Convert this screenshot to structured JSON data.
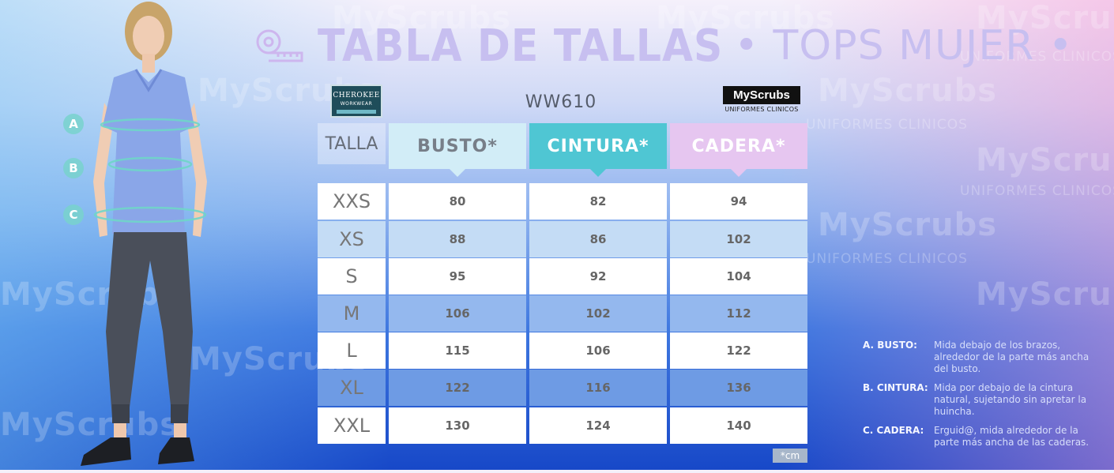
{
  "title": {
    "main": "TABLA DE TALLAS",
    "sub": "• TOPS MUJER •"
  },
  "brand_left": {
    "name": "CHEROKEE",
    "sub": "WORKWEAR"
  },
  "model_code": "WW610",
  "brand_right": {
    "name": "MyScrubs",
    "sub": "UNIFORMES CLINICOS"
  },
  "watermark": {
    "text": "MyScrubs",
    "sub": "UNIFORMES CLINICOS"
  },
  "table": {
    "headers": {
      "size": "TALLA",
      "bust": "BUSTO*",
      "waist": "CINTURA*",
      "hip": "CADERA*"
    },
    "rows": [
      {
        "size": "XXS",
        "bust": "80",
        "waist": "82",
        "hip": "94"
      },
      {
        "size": "XS",
        "bust": "88",
        "waist": "86",
        "hip": "102"
      },
      {
        "size": "S",
        "bust": "95",
        "waist": "92",
        "hip": "104"
      },
      {
        "size": "M",
        "bust": "106",
        "waist": "102",
        "hip": "112"
      },
      {
        "size": "L",
        "bust": "115",
        "waist": "106",
        "hip": "122"
      },
      {
        "size": "XL",
        "bust": "122",
        "waist": "116",
        "hip": "136"
      },
      {
        "size": "XXL",
        "bust": "130",
        "waist": "124",
        "hip": "140"
      }
    ],
    "unit_note": "*cm"
  },
  "measure_markers": [
    "A",
    "B",
    "C"
  ],
  "legend": [
    {
      "key": "A. BUSTO:",
      "text": "Mida debajo de los brazos, alrededor de la parte más ancha del busto."
    },
    {
      "key": "B. CINTURA:",
      "text": "Mida por debajo de la cintura natural, sujetando sin apretar la huincha."
    },
    {
      "key": "C. CADERA:",
      "text": "Erguid@, mida alrededor de la parte más ancha de las caderas."
    }
  ],
  "colors": {
    "title": "#c7bff0",
    "bust_header": "#d2edf7",
    "waist_header": "#4fc6d3",
    "hip_header": "#e6c6f0"
  }
}
